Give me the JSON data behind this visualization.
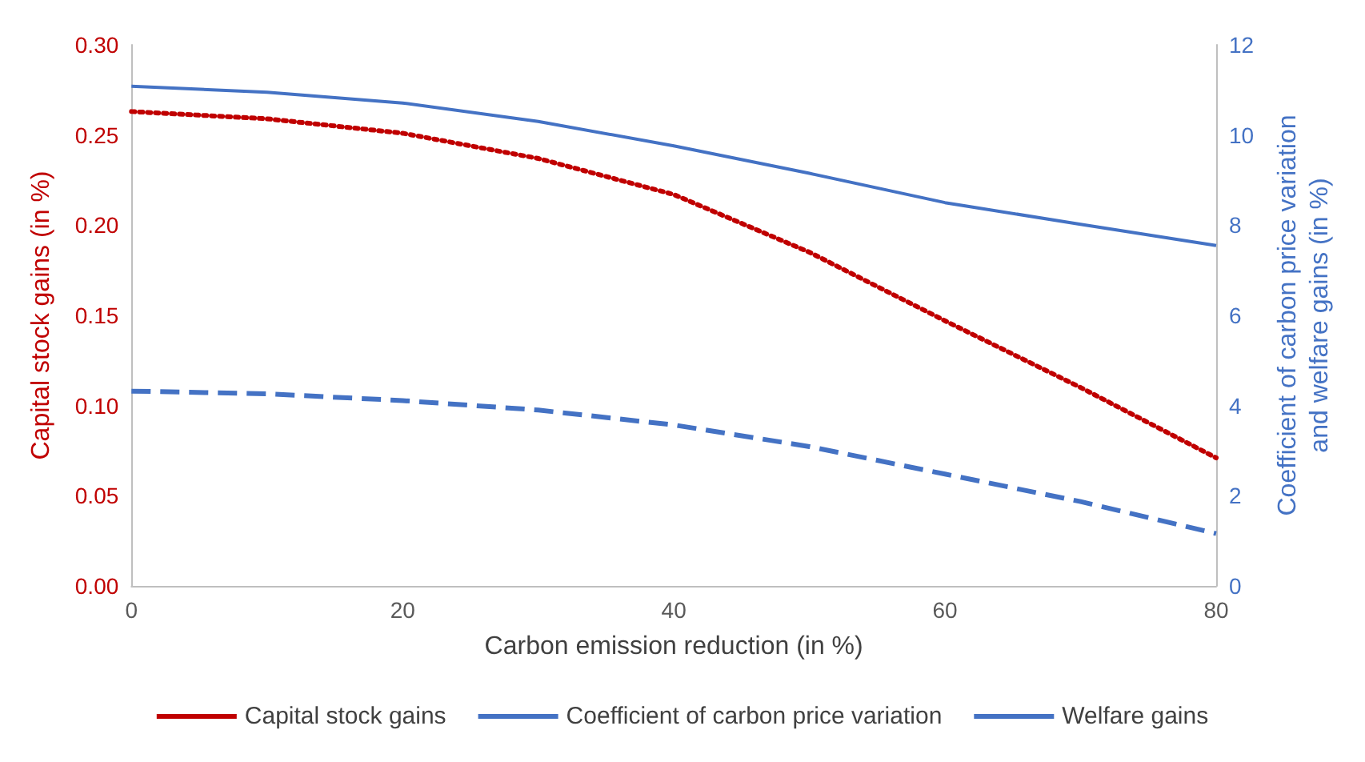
{
  "chart_data": {
    "type": "line",
    "xlabel": "Carbon emission reduction (in %)",
    "ylabel": "Capital stock gains (in %)",
    "y2label": "Coefficient of carbon price variation\nand welfare gains (in %)",
    "x": [
      0,
      10,
      20,
      30,
      40,
      50,
      60,
      70,
      80
    ],
    "series": [
      {
        "name": "Capital stock gains",
        "color": "#c00000",
        "line_style": "dotted",
        "values": [
          0.263,
          0.259,
          0.251,
          0.237,
          0.217,
          0.185,
          0.147,
          0.11,
          0.071
        ]
      },
      {
        "name": "Coefficient of carbon price variation",
        "color": "#4472c4",
        "line_style": "solid",
        "axis": "y2",
        "values": [
          11.08,
          10.95,
          10.71,
          10.3,
          9.76,
          9.15,
          8.5,
          8.02,
          7.55
        ]
      },
      {
        "name": "Welfare gains",
        "color": "#4472c4",
        "line_style": "dashed",
        "axis": "y2",
        "values": [
          4.32,
          4.26,
          4.11,
          3.9,
          3.57,
          3.09,
          2.48,
          1.87,
          1.16
        ]
      }
    ],
    "xlim": [
      0,
      80
    ],
    "xticks": [
      0,
      20,
      40,
      60,
      80
    ],
    "ylim": [
      0,
      0.3
    ],
    "yticks": [
      {
        "value": 0,
        "label": "0.00"
      },
      0.05,
      {
        "value": 0.1,
        "label": "0.10"
      },
      0.15,
      {
        "value": 0.2,
        "label": "0.20"
      },
      0.25,
      {
        "value": 0.3,
        "label": "0.30"
      }
    ],
    "y2lim": [
      0,
      12
    ],
    "y2ticks": [
      0,
      2,
      4,
      6,
      8,
      10,
      12
    ],
    "grid": false,
    "legend": "bottom",
    "marker": "none"
  }
}
